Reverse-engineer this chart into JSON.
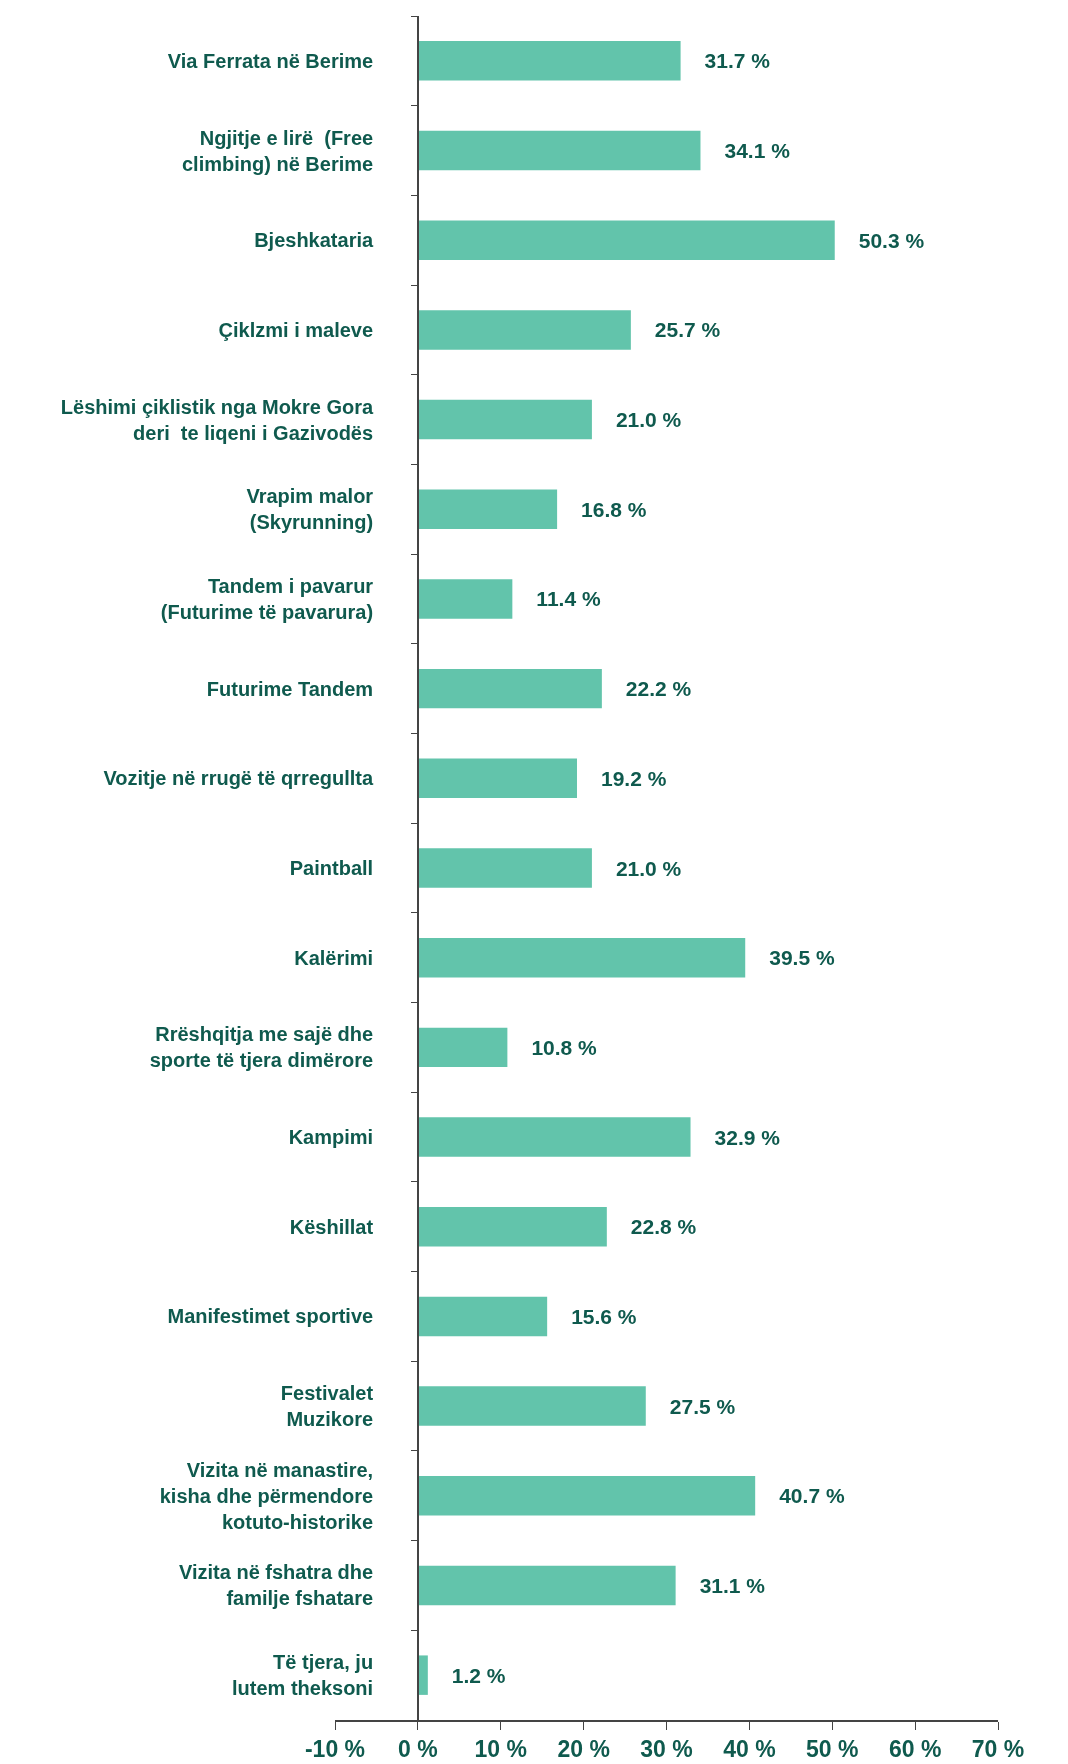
{
  "chart_data": {
    "type": "bar",
    "orientation": "horizontal",
    "categories": [
      "Via Ferrata në Berime",
      "Ngjitje e lirë  (Free\nclimbing) në Berime",
      "Bjeshkataria",
      "Çiklzmi i maleve",
      "Lëshimi çiklistik nga Mokre Gora\nderi  te liqeni i Gazivodës",
      "Vrapim malor\n(Skyrunning)",
      "Tandem i pavarur\n(Futurime të pavarura)",
      "Futurime Tandem",
      "Vozitje në rrugë të qrregullta",
      "Paintball",
      "Kalërimi",
      "Rrëshqitja me sajë dhe\nsporte të tjera dimërore",
      "Kampimi",
      "Këshillat",
      "Manifestimet sportive",
      "Festivalet\nMuzikore",
      "Vizita në manastire,\nkisha dhe përmendore\nkotuto-historike",
      "Vizita në fshatra dhe\nfamilje fshatare",
      "Të tjera, ju\nlutem theksoni"
    ],
    "values": [
      31.7,
      34.1,
      50.3,
      25.7,
      21.0,
      16.8,
      11.4,
      22.2,
      19.2,
      21.0,
      39.5,
      10.8,
      32.9,
      22.8,
      15.6,
      27.5,
      40.7,
      31.1,
      1.2
    ],
    "value_labels": [
      "31.7 %",
      "34.1 %",
      "50.3 %",
      "25.7 %",
      "21.0 %",
      "16.8 %",
      "11.4 %",
      "22.2 %",
      "19.2 %",
      "21.0 %",
      "39.5 %",
      "10.8 %",
      "32.9 %",
      "22.8 %",
      "15.6 %",
      "27.5 %",
      "40.7 %",
      "31.1 %",
      "1.2 %"
    ],
    "color": "#62c4ab",
    "xlim": [
      -10,
      70
    ],
    "xticks": [
      {
        "value": -10,
        "label": "-10 %"
      },
      {
        "value": 0,
        "label": "0 %"
      },
      {
        "value": 10,
        "label": "10 %"
      },
      {
        "value": 20,
        "label": "20 %"
      },
      {
        "value": 30,
        "label": "30 %"
      },
      {
        "value": 40,
        "label": "40 %"
      },
      {
        "value": 50,
        "label": "50 %"
      },
      {
        "value": 60,
        "label": "60 %"
      },
      {
        "value": 70,
        "label": "70 %"
      }
    ],
    "grid": false
  }
}
